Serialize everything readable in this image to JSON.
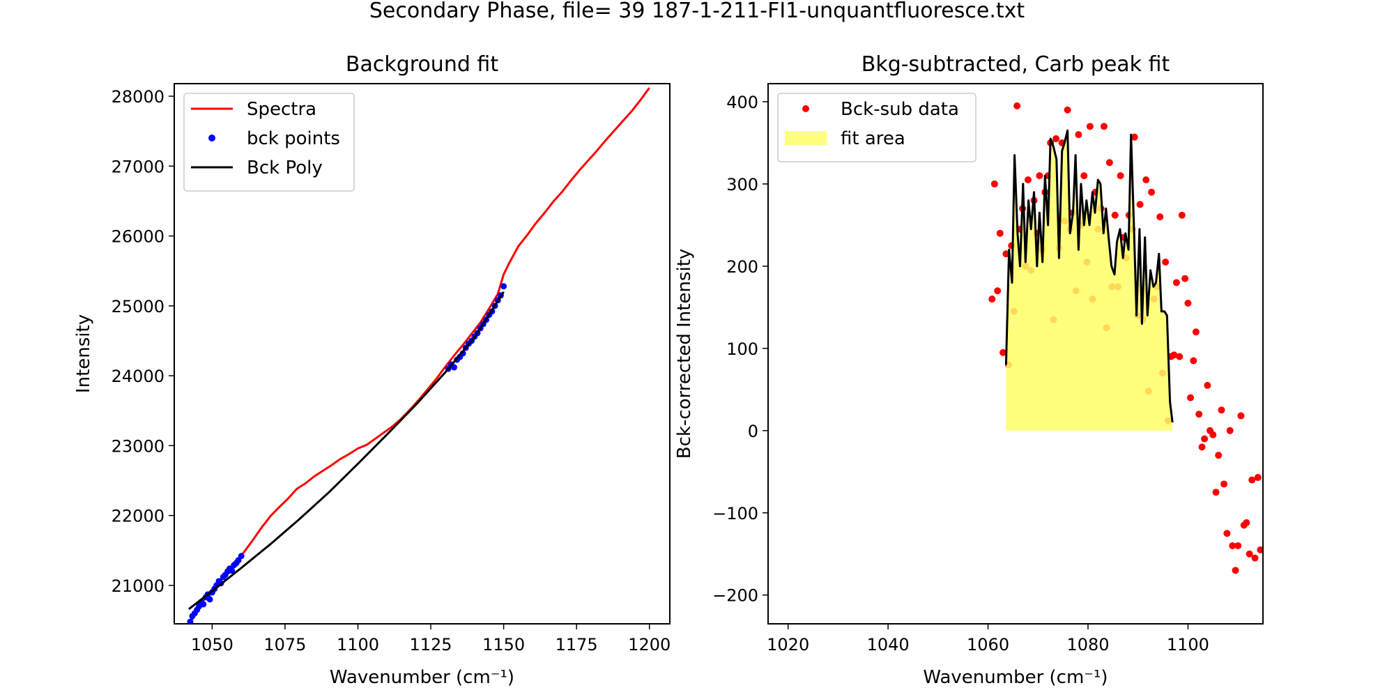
{
  "figure": {
    "suptitle": "Secondary Phase, file= 39 187-1-211-FI1-unquantfluoresce.txt"
  },
  "chart_data": [
    {
      "type": "line",
      "title": "Background fit",
      "xlabel": "Wavenumber (cm⁻¹)",
      "ylabel": "Intensity",
      "xlim": [
        1037,
        1207
      ],
      "ylim": [
        20450,
        28180
      ],
      "xticks": [
        1050,
        1075,
        1100,
        1125,
        1150,
        1175,
        1200
      ],
      "yticks": [
        21000,
        22000,
        23000,
        24000,
        25000,
        26000,
        27000,
        28000
      ],
      "legend": {
        "position": "upper-left",
        "entries": [
          {
            "label": "Spectra",
            "marker": "line",
            "color": "#ff0000"
          },
          {
            "label": "bck points",
            "marker": "dot",
            "color": "#0000ff"
          },
          {
            "label": "Bck Poly",
            "marker": "line",
            "color": "#000000"
          }
        ]
      },
      "series": [
        {
          "name": "Spectra",
          "color": "#ff0000",
          "x": [
            1043,
            1046,
            1049,
            1052,
            1055,
            1058,
            1061,
            1064,
            1067,
            1070,
            1073,
            1076,
            1079,
            1082,
            1085,
            1088,
            1091,
            1094,
            1097,
            1100,
            1103,
            1106,
            1109,
            1112,
            1115,
            1118,
            1121,
            1124,
            1127,
            1130,
            1133,
            1136,
            1139,
            1142,
            1145,
            1148,
            1150,
            1152,
            1155,
            1158,
            1161,
            1164,
            1167,
            1170,
            1173,
            1176,
            1179,
            1182,
            1185,
            1188,
            1191,
            1194,
            1197,
            1200
          ],
          "y": [
            20500,
            20720,
            20900,
            21020,
            21180,
            21330,
            21480,
            21650,
            21830,
            21990,
            22120,
            22240,
            22380,
            22460,
            22560,
            22640,
            22720,
            22810,
            22880,
            22960,
            23010,
            23100,
            23190,
            23280,
            23390,
            23520,
            23660,
            23810,
            23960,
            24130,
            24290,
            24440,
            24600,
            24760,
            24960,
            25170,
            25450,
            25620,
            25850,
            26010,
            26180,
            26330,
            26490,
            26630,
            26790,
            26940,
            27080,
            27220,
            27370,
            27510,
            27650,
            27790,
            27950,
            28120
          ]
        },
        {
          "name": "bck points",
          "color": "#0000ff",
          "x": [
            1042.5,
            1043.2,
            1044,
            1044.8,
            1045.5,
            1046.2,
            1047,
            1047.8,
            1048.5,
            1049.2,
            1050,
            1050.8,
            1051.5,
            1052.3,
            1053,
            1053.8,
            1054.5,
            1055.3,
            1056,
            1056.8,
            1057.5,
            1058.3,
            1059,
            1060,
            1131,
            1132,
            1133,
            1134,
            1135,
            1136,
            1137,
            1138,
            1139,
            1140,
            1141,
            1142,
            1143,
            1144,
            1145,
            1146,
            1147,
            1148,
            1149,
            1150
          ],
          "y": [
            20480,
            20560,
            20600,
            20650,
            20700,
            20760,
            20730,
            20830,
            20870,
            20800,
            20900,
            20950,
            21000,
            21060,
            21030,
            21120,
            21150,
            21200,
            21240,
            21210,
            21290,
            21320,
            21360,
            21420,
            24100,
            24160,
            24120,
            24230,
            24270,
            24320,
            24400,
            24460,
            24500,
            24560,
            24610,
            24680,
            24740,
            24800,
            24870,
            24920,
            25000,
            25080,
            25150,
            25280
          ]
        },
        {
          "name": "Bck Poly",
          "color": "#000000",
          "x": [
            1042,
            1050,
            1060,
            1070,
            1080,
            1090,
            1100,
            1110,
            1120,
            1130,
            1140,
            1150
          ],
          "y": [
            20660,
            20920,
            21250,
            21590,
            21950,
            22330,
            22740,
            23160,
            23590,
            24050,
            24550,
            25200
          ]
        }
      ]
    },
    {
      "type": "scatter",
      "title": "Bkg-subtracted, Carb peak fit",
      "xlabel": "Wavenumber (cm⁻¹)",
      "ylabel": "Bck-corrected Intensity",
      "xlim": [
        1016,
        1115
      ],
      "ylim": [
        -235,
        422
      ],
      "xticks": [
        1020,
        1040,
        1060,
        1080,
        1100
      ],
      "yticks": [
        -200,
        -100,
        0,
        100,
        200,
        300,
        400
      ],
      "legend": {
        "position": "upper-left",
        "entries": [
          {
            "label": "Bck-sub data",
            "marker": "dot",
            "color": "#ff0000"
          },
          {
            "label": "fit area",
            "marker": "patch",
            "color": "#ffff66"
          }
        ]
      },
      "series": [
        {
          "name": "Bck-sub data",
          "color": "#ff0000",
          "x": [
            1060.8,
            1061.3,
            1061.9,
            1062.4,
            1063,
            1063.6,
            1064.1,
            1064.7,
            1065.2,
            1065.8,
            1066.4,
            1066.9,
            1067.5,
            1068,
            1068.6,
            1069.2,
            1069.7,
            1070.3,
            1070.8,
            1071.4,
            1072,
            1072.5,
            1073.1,
            1073.6,
            1074.2,
            1074.8,
            1075.3,
            1075.9,
            1076.4,
            1077,
            1077.6,
            1078.1,
            1078.7,
            1079.2,
            1079.8,
            1080.4,
            1080.9,
            1081.5,
            1082,
            1082.6,
            1083.2,
            1083.7,
            1084.3,
            1084.8,
            1085.4,
            1086,
            1086.5,
            1087.1,
            1087.6,
            1088.2,
            1088.8,
            1089.3,
            1089.9,
            1090.4,
            1091,
            1091.6,
            1092.1,
            1092.7,
            1093.2,
            1093.8,
            1094.4,
            1094.9,
            1095.5,
            1096,
            1096.6,
            1097.2,
            1097.7,
            1098.3,
            1098.8,
            1099.4,
            1100,
            1100.5,
            1101.1,
            1101.6,
            1102.2,
            1102.8,
            1103.3,
            1103.9,
            1104.4,
            1105,
            1105.6,
            1106.1,
            1106.7,
            1107.2,
            1107.8,
            1108.4,
            1108.9,
            1109.5,
            1110,
            1110.6,
            1111.2,
            1111.7,
            1112.3,
            1112.8,
            1113.4,
            1114,
            1114.5
          ],
          "y": [
            160,
            300,
            170,
            240,
            95,
            215,
            80,
            225,
            145,
            395,
            245,
            270,
            200,
            305,
            195,
            280,
            240,
            310,
            220,
            290,
            310,
            350,
            135,
            355,
            222,
            350,
            255,
            390,
            245,
            265,
            170,
            360,
            250,
            310,
            205,
            370,
            160,
            290,
            245,
            270,
            370,
            125,
            326,
            175,
            262,
            175,
            310,
            235,
            210,
            262,
            245,
            357,
            140,
            275,
            135,
            305,
            48,
            290,
            160,
            175,
            260,
            70,
            205,
            12,
            90,
            92,
            180,
            90,
            262,
            185,
            155,
            40,
            85,
            120,
            20,
            -20,
            -10,
            55,
            0,
            -5,
            -75,
            -30,
            25,
            -65,
            -125,
            0,
            -140,
            -170,
            -140,
            18,
            -115,
            -112,
            -150,
            -60,
            -155,
            -57,
            -145
          ]
        },
        {
          "name": "fit area",
          "color": "#000000",
          "fill": "#ffff66",
          "x": [
            1063.6,
            1064.2,
            1064.8,
            1065.3,
            1065.9,
            1066.4,
            1067,
            1067.5,
            1068.1,
            1068.6,
            1069.2,
            1069.8,
            1070.3,
            1070.9,
            1071.4,
            1072,
            1072.5,
            1073.1,
            1073.7,
            1074.2,
            1074.8,
            1075.3,
            1075.9,
            1076.4,
            1077,
            1077.5,
            1078.1,
            1078.6,
            1079.2,
            1079.7,
            1080.3,
            1080.9,
            1081.4,
            1082,
            1082.5,
            1083.1,
            1083.6,
            1084.2,
            1084.7,
            1085.3,
            1085.8,
            1086.4,
            1087,
            1087.5,
            1088.1,
            1088.6,
            1089.2,
            1089.7,
            1090.3,
            1090.8,
            1091.4,
            1091.9,
            1092.5,
            1093.1,
            1093.6,
            1094.2,
            1094.7,
            1095.3,
            1095.8,
            1096.4,
            1096.9
          ],
          "y": [
            80,
            220,
            180,
            335,
            240,
            200,
            300,
            205,
            280,
            245,
            290,
            200,
            265,
            205,
            310,
            250,
            355,
            345,
            330,
            210,
            340,
            350,
            365,
            240,
            265,
            335,
            220,
            300,
            250,
            280,
            250,
            290,
            265,
            305,
            300,
            240,
            270,
            230,
            200,
            190,
            230,
            245,
            210,
            240,
            220,
            360,
            245,
            140,
            245,
            130,
            235,
            140,
            195,
            175,
            180,
            215,
            145,
            145,
            140,
            35,
            10
          ]
        }
      ]
    }
  ]
}
